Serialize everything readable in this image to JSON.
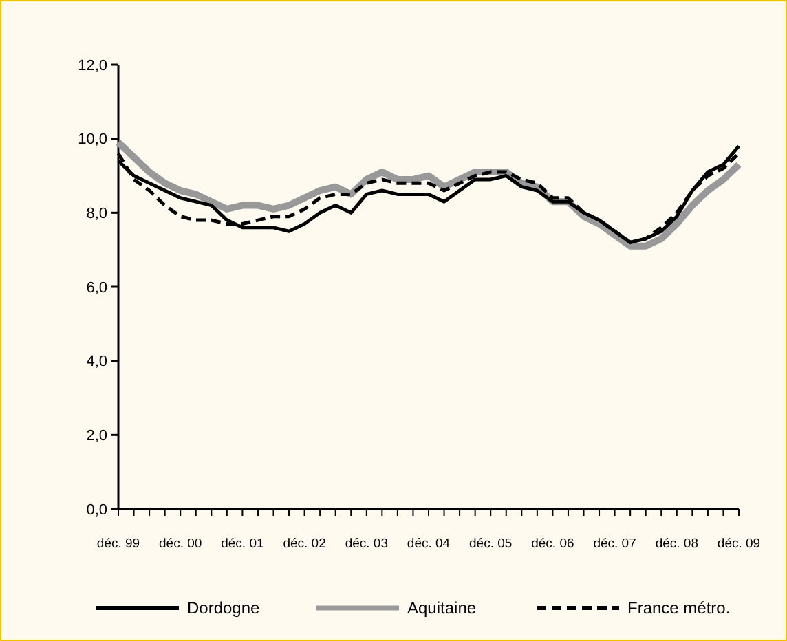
{
  "chart_data": {
    "type": "line",
    "categories": [
      "déc. 99",
      null,
      null,
      null,
      "déc. 00",
      null,
      null,
      null,
      "déc. 01",
      null,
      null,
      null,
      "déc. 02",
      null,
      null,
      null,
      "déc. 03",
      null,
      null,
      null,
      "déc. 04",
      null,
      null,
      null,
      "déc. 05",
      null,
      null,
      null,
      "déc. 06",
      null,
      null,
      null,
      "déc. 07",
      null,
      null,
      null,
      "déc. 08",
      null,
      null,
      null,
      "déc. 09"
    ],
    "ylim": [
      0,
      12
    ],
    "yticks": [
      {
        "value": 0,
        "label": "0,0"
      },
      {
        "value": 2,
        "label": "2,0"
      },
      {
        "value": 4,
        "label": "4,0"
      },
      {
        "value": 6,
        "label": "6,0"
      },
      {
        "value": 8,
        "label": "8,0"
      },
      {
        "value": 10,
        "label": "10,0"
      },
      {
        "value": 12,
        "label": "12,0"
      }
    ],
    "legend": "bottom",
    "grid": false,
    "series": [
      {
        "name": "Dordogne",
        "color": "#000000",
        "line_style": "solid",
        "values": [
          9.4,
          9.0,
          8.8,
          8.6,
          8.4,
          8.3,
          8.2,
          7.8,
          7.6,
          7.6,
          7.6,
          7.5,
          7.7,
          8.0,
          8.2,
          8.0,
          8.5,
          8.6,
          8.5,
          8.5,
          8.5,
          8.3,
          8.6,
          8.9,
          8.9,
          9.0,
          8.7,
          8.6,
          8.3,
          8.3,
          8.0,
          7.8,
          7.5,
          7.2,
          7.3,
          7.5,
          7.9,
          8.6,
          9.1,
          9.3,
          9.8
        ]
      },
      {
        "name": "Aquitaine",
        "color": "#999999",
        "line_style": "solid",
        "values": [
          9.9,
          9.5,
          9.1,
          8.8,
          8.6,
          8.5,
          8.3,
          8.1,
          8.2,
          8.2,
          8.1,
          8.2,
          8.4,
          8.6,
          8.7,
          8.5,
          8.9,
          9.1,
          8.9,
          8.9,
          9.0,
          8.7,
          8.9,
          9.1,
          9.1,
          9.1,
          8.8,
          8.7,
          8.3,
          8.3,
          7.9,
          7.7,
          7.4,
          7.1,
          7.1,
          7.3,
          7.7,
          8.2,
          8.6,
          8.9,
          9.3
        ]
      },
      {
        "name": "France métro.",
        "color": "#000000",
        "line_style": "dashed",
        "values": [
          9.6,
          8.9,
          8.6,
          8.2,
          7.9,
          7.8,
          7.8,
          7.7,
          7.7,
          7.8,
          7.9,
          7.9,
          8.1,
          8.4,
          8.5,
          8.5,
          8.8,
          8.9,
          8.8,
          8.8,
          8.8,
          8.6,
          8.8,
          9.0,
          9.1,
          9.1,
          8.9,
          8.8,
          8.4,
          8.4,
          8.0,
          7.8,
          7.5,
          7.2,
          7.3,
          7.6,
          8.0,
          8.6,
          9.0,
          9.2,
          9.6
        ]
      }
    ]
  }
}
